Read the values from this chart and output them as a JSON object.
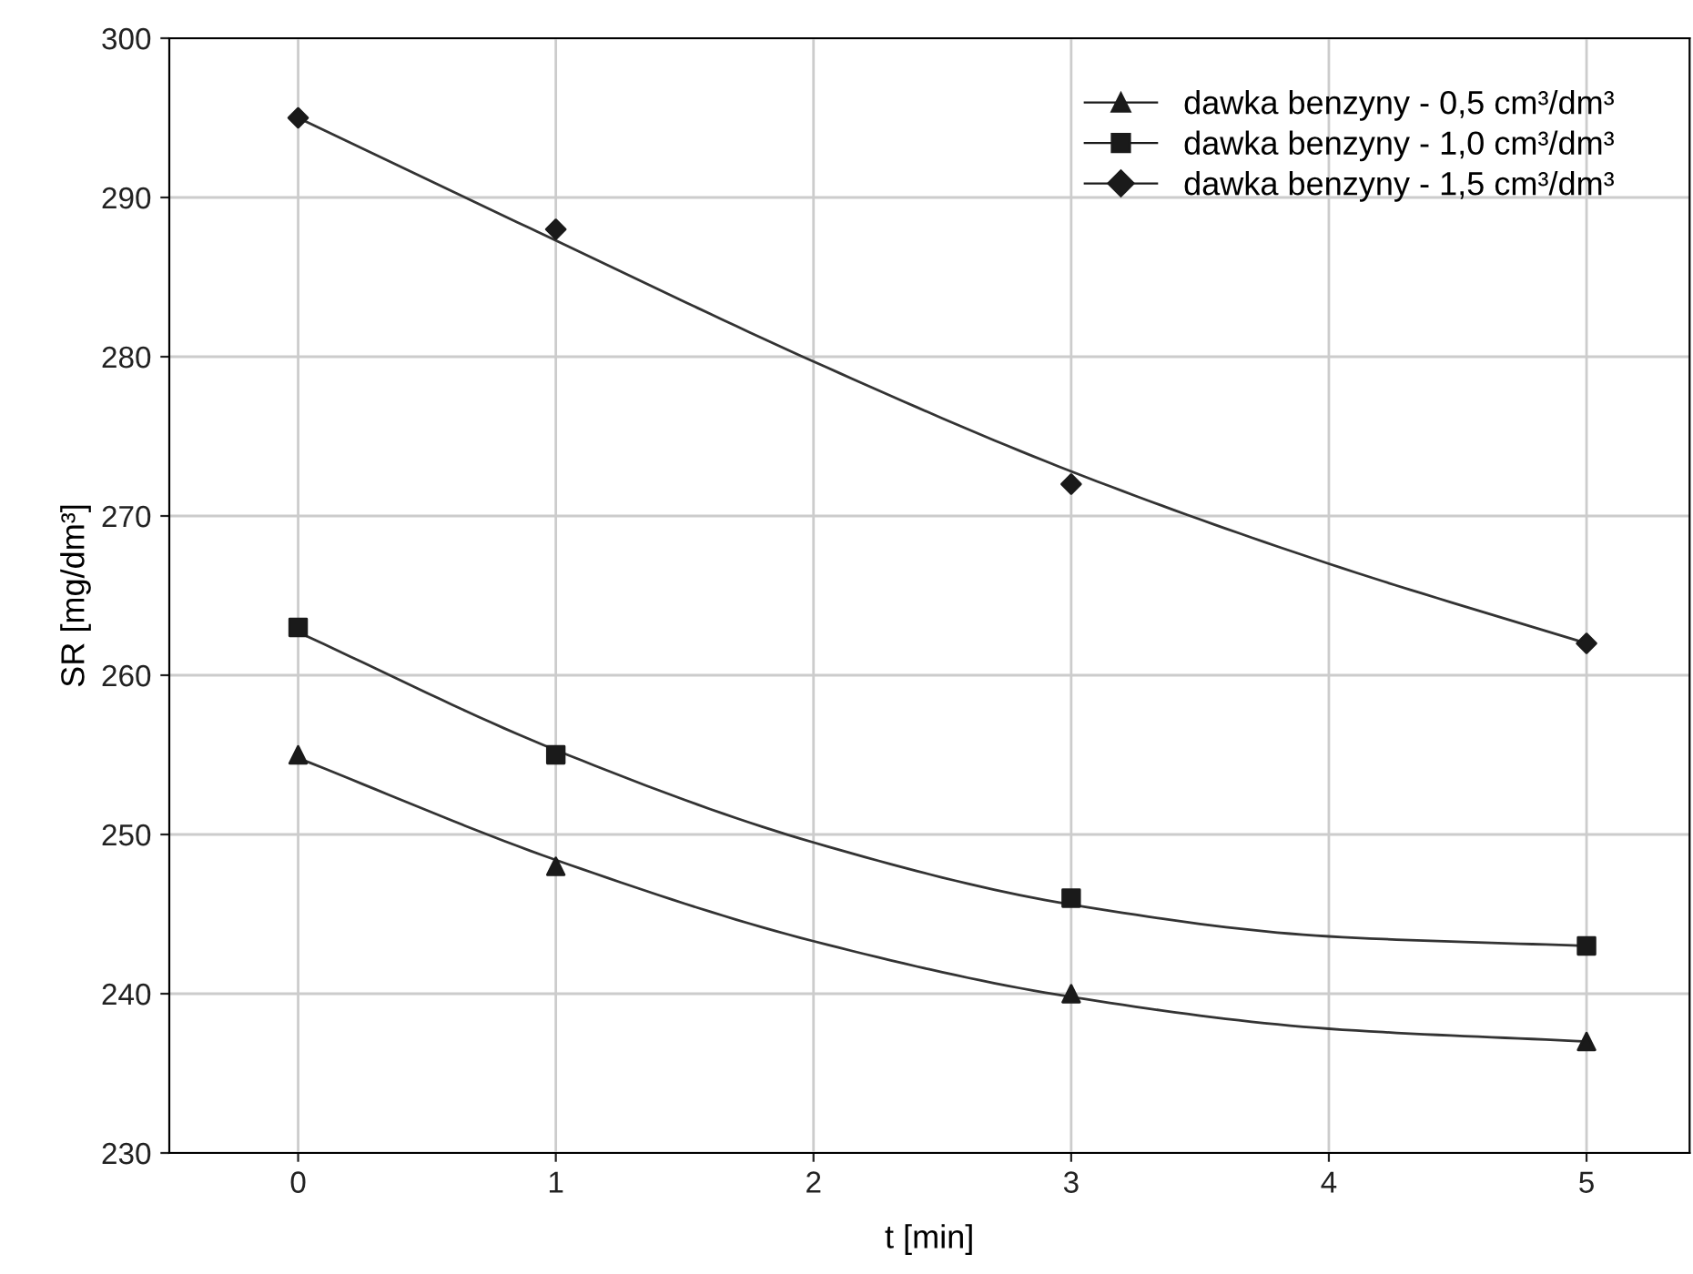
{
  "chart_data": {
    "type": "scatter",
    "xlabel": "t [min]",
    "ylabel": "SR [mg/dm³]",
    "xlim": [
      -0.5,
      5.4
    ],
    "ylim": [
      230,
      300
    ],
    "xticks": [
      0,
      1,
      2,
      3,
      4,
      5
    ],
    "yticks": [
      230,
      240,
      250,
      260,
      270,
      280,
      290,
      300
    ],
    "grid": true,
    "legend": "top right",
    "series": [
      {
        "name": "dawka benzyny - 0,5 cm³/dm³",
        "color": "#1a1a1a",
        "marker": "triangle",
        "x": [
          0,
          1,
          3,
          5
        ],
        "values": [
          255,
          248,
          240,
          237
        ]
      },
      {
        "name": "dawka benzyny - 1,0 cm³/dm³",
        "color": "#1a1a1a",
        "marker": "square",
        "x": [
          0,
          1,
          3,
          5
        ],
        "values": [
          263,
          255,
          246,
          243
        ]
      },
      {
        "name": "dawka benzyny - 1,5 cm³/dm³",
        "color": "#1a1a1a",
        "marker": "diamond",
        "x": [
          0,
          1,
          3,
          5
        ],
        "values": [
          295,
          288,
          272,
          262
        ]
      },
      {
        "type": "line",
        "color": "#333333",
        "x": [
          0,
          1,
          2,
          3,
          4,
          5
        ],
        "values": [
          254.8,
          248.4,
          243.3,
          239.8,
          237.8,
          237
        ]
      },
      {
        "type": "line",
        "color": "#333333",
        "x": [
          0,
          1,
          2,
          3,
          4,
          5
        ],
        "values": [
          262.7,
          255.3,
          249.5,
          245.6,
          243.6,
          243
        ]
      },
      {
        "type": "line",
        "color": "#333333",
        "x": [
          0,
          1,
          2,
          3,
          4,
          5
        ],
        "values": [
          295,
          287.3,
          279.7,
          272.8,
          267,
          262
        ]
      }
    ]
  }
}
